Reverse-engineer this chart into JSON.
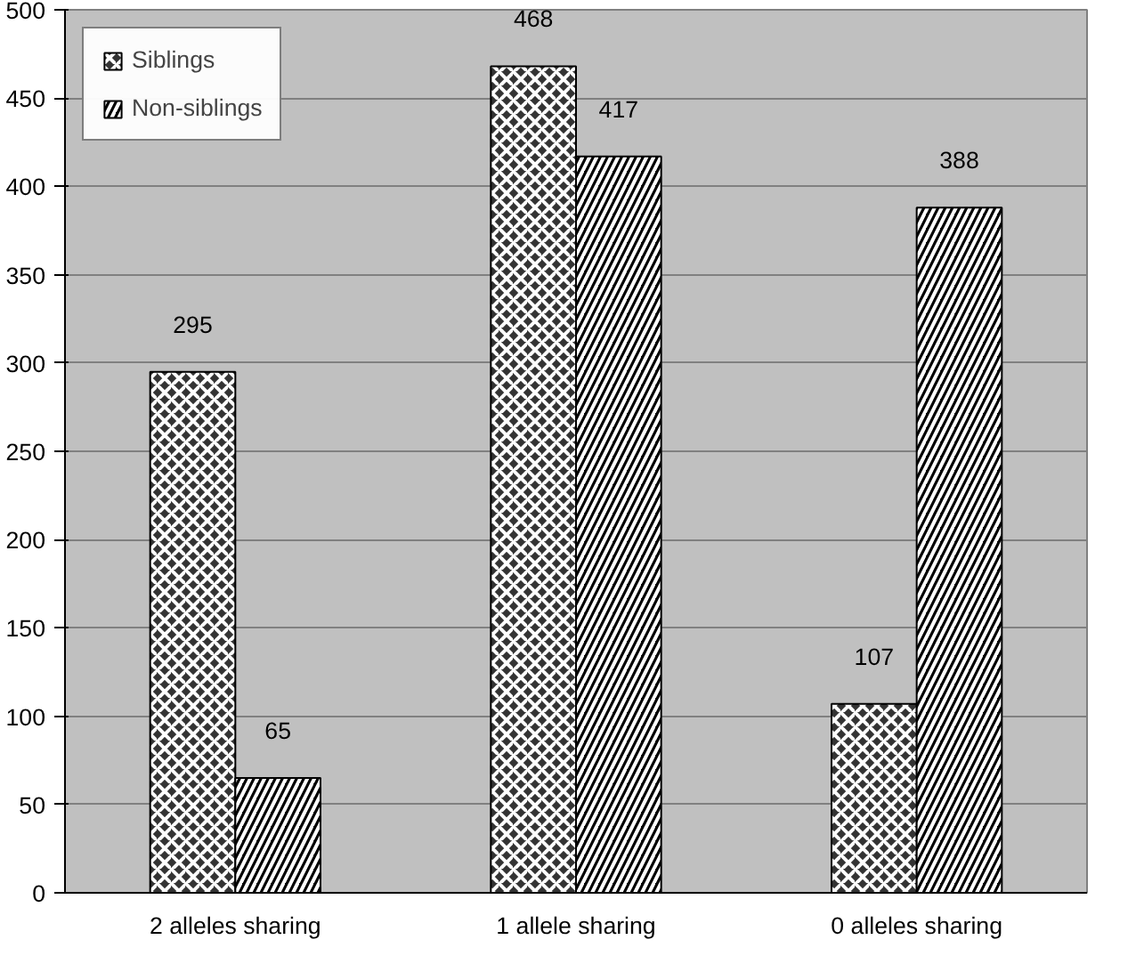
{
  "chart_data": {
    "type": "bar",
    "categories": [
      "2 alleles sharing",
      "1 allele sharing",
      "0 alleles sharing"
    ],
    "series": [
      {
        "name": "Siblings",
        "color": "#333333",
        "values": [
          295,
          468,
          107
        ]
      },
      {
        "name": "Non-siblings",
        "color": "#000000",
        "values": [
          65,
          417,
          388
        ]
      }
    ],
    "ylim": [
      0,
      500
    ],
    "yticks": [
      0,
      50,
      100,
      150,
      200,
      250,
      300,
      350,
      400,
      450,
      500
    ],
    "grid": "y",
    "legend": "top left",
    "data_labels": true
  }
}
